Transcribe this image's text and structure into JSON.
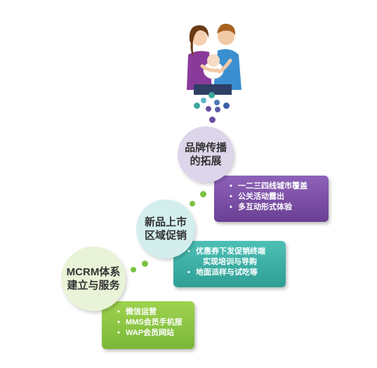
{
  "steps": [
    {
      "circle": [
        "品牌传播",
        "的拓展"
      ],
      "bullets": [
        {
          "text": "一二三四线城市覆盖",
          "bullet": true
        },
        {
          "text": "公关活动露出",
          "bullet": true
        },
        {
          "text": "多互动形式体验",
          "bullet": true
        }
      ],
      "panel_color": "#7e4fa8"
    },
    {
      "circle": [
        "新品上市",
        "区域促销"
      ],
      "bullets": [
        {
          "text": "优惠券下发促销终端",
          "bullet": true
        },
        {
          "text": "实现培训与导购",
          "bullet": false
        },
        {
          "text": "地面派样与试吃等",
          "bullet": true
        }
      ],
      "panel_color": "#3fb3a8"
    },
    {
      "circle": [
        "MCRM体系",
        "建立与服务"
      ],
      "bullets": [
        {
          "text": "微信运营",
          "bullet": true
        },
        {
          "text": "MMS会员手机报",
          "bullet": true
        },
        {
          "text": "WAP会员网站",
          "bullet": true
        }
      ],
      "panel_color": "#8dc63f"
    }
  ],
  "colors": {
    "purple_circle": "#dcd4ea",
    "teal_circle": "#d5eeee",
    "green_circle": "#e9f3d8",
    "dot_teal": "#3fa89f",
    "dot_purple": "#6a4f9e",
    "dot_green": "#7cc242"
  },
  "icons": {
    "family": "family-illustration"
  }
}
